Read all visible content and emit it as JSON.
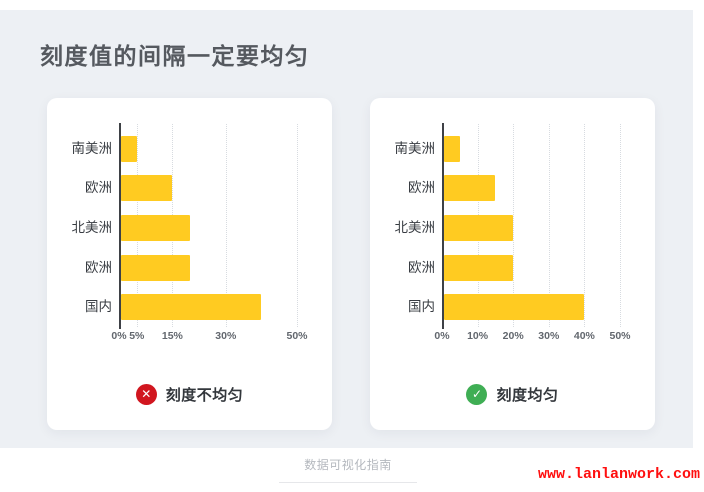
{
  "page": {
    "title": "刻度值的间隔一定要均匀",
    "footer_caption": "数据可视化指南",
    "watermark": "www.lanlanwork.com"
  },
  "colors": {
    "background": "#edf0f4",
    "card": "#ffffff",
    "bar": "#ffcb21",
    "axis": "#3e4146",
    "gridline": "#d7dbe0",
    "bad": "#d1161f",
    "good": "#3fae54",
    "title_text": "#55595f",
    "watermark_red": "#ff0f0f"
  },
  "chart_data": [
    {
      "type": "bar",
      "orientation": "horizontal",
      "title": "",
      "xlabel": "",
      "ylabel": "",
      "categories": [
        "南美洲",
        "欧洲",
        "北美洲",
        "欧洲",
        "国内"
      ],
      "values": [
        5,
        15,
        20,
        20,
        40
      ],
      "unit": "%",
      "xlim": [
        0,
        50
      ],
      "ticks": [
        0,
        5,
        15,
        30,
        50
      ],
      "tick_labels": [
        "0%",
        "5%",
        "15%",
        "30%",
        "50%"
      ],
      "grid": true,
      "legend": "none",
      "verdict": {
        "status": "bad",
        "label": "刻度不均匀",
        "glyph": "✕"
      }
    },
    {
      "type": "bar",
      "orientation": "horizontal",
      "title": "",
      "xlabel": "",
      "ylabel": "",
      "categories": [
        "南美洲",
        "欧洲",
        "北美洲",
        "欧洲",
        "国内"
      ],
      "values": [
        5,
        15,
        20,
        20,
        40
      ],
      "unit": "%",
      "xlim": [
        0,
        50
      ],
      "ticks": [
        0,
        10,
        20,
        30,
        40,
        50
      ],
      "tick_labels": [
        "0%",
        "10%",
        "20%",
        "30%",
        "40%",
        "50%"
      ],
      "grid": true,
      "legend": "none",
      "verdict": {
        "status": "good",
        "label": "刻度均匀",
        "glyph": "✓"
      }
    }
  ]
}
